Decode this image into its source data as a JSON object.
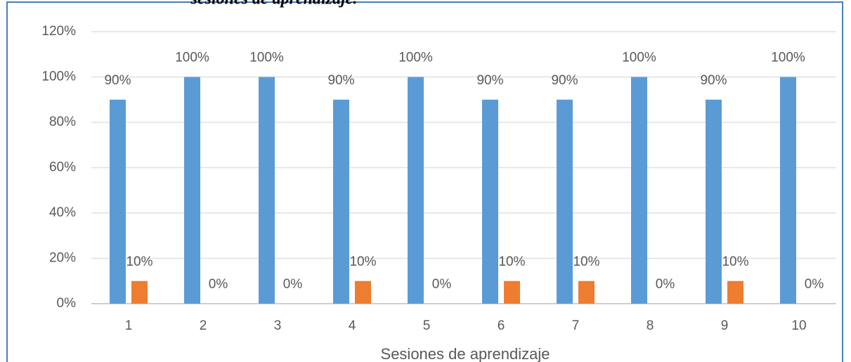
{
  "chart_data": {
    "type": "bar",
    "title": "sesiones de aprendizaje.",
    "x_label": "Sesiones de aprendizaje",
    "categories": [
      "1",
      "2",
      "3",
      "4",
      "5",
      "6",
      "7",
      "8",
      "9",
      "10"
    ],
    "series": [
      {
        "color": "#5b9bd5",
        "values": [
          90,
          100,
          100,
          90,
          100,
          90,
          90,
          100,
          90,
          100
        ],
        "value_labels": [
          "90%",
          "100%",
          "100%",
          "90%",
          "100%",
          "90%",
          "90%",
          "100%",
          "90%",
          "100%"
        ]
      },
      {
        "color": "#ed7d31",
        "values": [
          10,
          0,
          0,
          10,
          0,
          10,
          10,
          0,
          10,
          0
        ],
        "value_labels": [
          "10%",
          "0%",
          "0%",
          "10%",
          "0%",
          "10%",
          "10%",
          "0%",
          "10%",
          "0%"
        ]
      }
    ],
    "ylim": [
      0,
      120
    ],
    "yticks": [
      {
        "value": 0,
        "label": "0%"
      },
      {
        "value": 20,
        "label": "20%"
      },
      {
        "value": 40,
        "label": "40%"
      },
      {
        "value": 60,
        "label": "60%"
      },
      {
        "value": 80,
        "label": "80%"
      },
      {
        "value": 100,
        "label": "100%"
      },
      {
        "value": 120,
        "label": "120%"
      }
    ],
    "grid": true
  }
}
